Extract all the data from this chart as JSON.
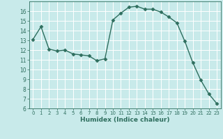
{
  "x": [
    0,
    1,
    2,
    3,
    4,
    5,
    6,
    7,
    8,
    9,
    10,
    11,
    12,
    13,
    14,
    15,
    16,
    17,
    18,
    19,
    20,
    21,
    22,
    23
  ],
  "y": [
    13.1,
    14.4,
    12.1,
    11.9,
    12.0,
    11.6,
    11.5,
    11.4,
    10.9,
    11.1,
    15.1,
    15.8,
    16.4,
    16.5,
    16.2,
    16.2,
    15.9,
    15.4,
    14.8,
    12.9,
    10.7,
    8.9,
    7.5,
    6.5
  ],
  "line_color": "#2e6e5e",
  "marker": "D",
  "marker_size": 2.5,
  "bg_color": "#c8eaea",
  "grid_color": "#ffffff",
  "xlabel": "Humidex (Indice chaleur)",
  "xlim": [
    -0.5,
    23.5
  ],
  "ylim": [
    6,
    17
  ],
  "yticks": [
    6,
    7,
    8,
    9,
    10,
    11,
    12,
    13,
    14,
    15,
    16
  ],
  "xticks": [
    0,
    1,
    2,
    3,
    4,
    5,
    6,
    7,
    8,
    9,
    10,
    11,
    12,
    13,
    14,
    15,
    16,
    17,
    18,
    19,
    20,
    21,
    22,
    23
  ]
}
